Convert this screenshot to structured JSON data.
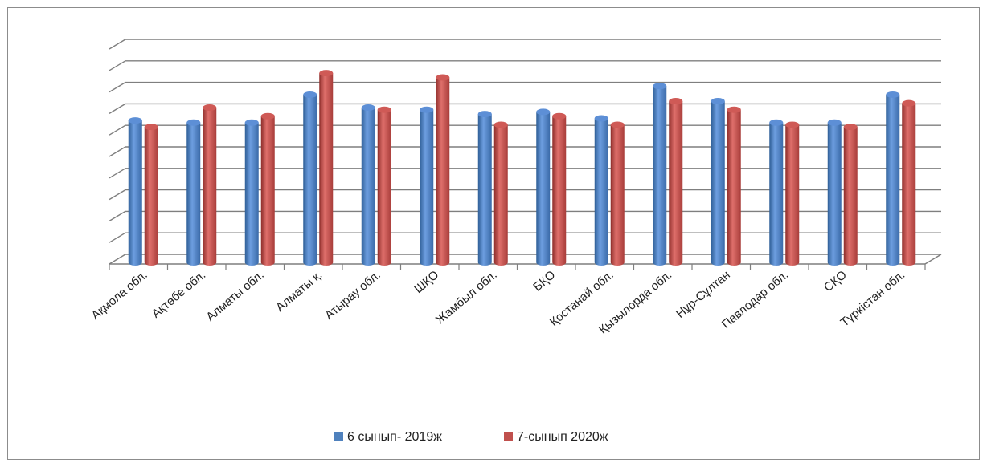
{
  "chart_data": {
    "type": "bar",
    "title": "",
    "xlabel": "",
    "ylabel": "",
    "ylim": [
      0,
      10
    ],
    "y_ticks_labeled": false,
    "grid": true,
    "legend_position": "bottom",
    "categories": [
      "Ақмола обл.",
      "Ақтөбе обл.",
      "Алматы обл.",
      "Алматы қ.",
      "Атырау обл.",
      "ШҚО",
      "Жамбыл обл.",
      "БҚО",
      "Қостанай обл.",
      "Қызылорда обл.",
      "Нұр-Сұлтан",
      "Павлодар обл.",
      "СҚО",
      "Түркістан обл."
    ],
    "series": [
      {
        "name": "6 сынып- 2019ж",
        "color": "#4F81BD",
        "values": [
          6.6,
          6.5,
          6.5,
          7.8,
          7.2,
          7.1,
          6.9,
          7.0,
          6.7,
          8.2,
          7.5,
          6.5,
          6.5,
          7.8
        ]
      },
      {
        "name": "7-сынып 2020ж",
        "color": "#C0504D",
        "values": [
          6.3,
          7.2,
          6.8,
          8.8,
          7.1,
          8.6,
          6.4,
          6.8,
          6.4,
          7.5,
          7.1,
          6.4,
          6.3,
          7.4
        ]
      }
    ]
  }
}
